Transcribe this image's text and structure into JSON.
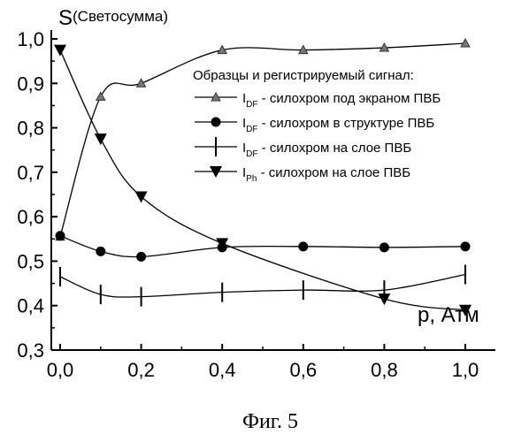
{
  "chart_data": {
    "type": "line",
    "ylabel_symbol": "S",
    "ylabel_text": "(Светосумма)",
    "xlabel": "p, Атм",
    "caption": "Фиг. 5",
    "xlim": [
      0,
      1.0
    ],
    "ylim": [
      0.3,
      1.0
    ],
    "x_ticks": [
      "0,0",
      "0,2",
      "0,4",
      "0,6",
      "0,8",
      "1,0"
    ],
    "x_tick_values": [
      0,
      0.2,
      0.4,
      0.6,
      0.8,
      1.0
    ],
    "y_ticks": [
      "0,3",
      "0,4",
      "0,5",
      "0,6",
      "0,7",
      "0,8",
      "0,9",
      "1,0"
    ],
    "y_tick_values": [
      0.3,
      0.4,
      0.5,
      0.6,
      0.7,
      0.8,
      0.9,
      1.0
    ],
    "legend_title": "Образцы и регистрируемый сигнал:",
    "series": [
      {
        "name_main": "I",
        "name_sub": "DF",
        "name_rest": " - силохром под экраном ПВБ",
        "marker": "triangle-up",
        "x": [
          0.0,
          0.1,
          0.2,
          0.4,
          0.6,
          0.8,
          1.0
        ],
        "y": [
          0.555,
          0.87,
          0.9,
          0.975,
          0.975,
          0.98,
          0.99
        ]
      },
      {
        "name_main": "I",
        "name_sub": "DF",
        "name_rest": " - силохром в структуре ПВБ",
        "marker": "circle",
        "x": [
          0.0,
          0.1,
          0.2,
          0.4,
          0.6,
          0.8,
          1.0
        ],
        "y": [
          0.557,
          0.522,
          0.51,
          0.531,
          0.533,
          0.531,
          0.533
        ]
      },
      {
        "name_main": "I",
        "name_sub": "DF",
        "name_rest": " - силохром на слое ПВБ",
        "marker": "vbar",
        "x": [
          0.0,
          0.1,
          0.2,
          0.4,
          0.6,
          0.8,
          1.0
        ],
        "y": [
          0.465,
          0.425,
          0.42,
          0.43,
          0.435,
          0.435,
          0.47
        ]
      },
      {
        "name_main": "I",
        "name_sub": "Ph",
        "name_rest": " - силохром на слое ПВБ",
        "marker": "triangle-down",
        "x": [
          0.0,
          0.1,
          0.2,
          0.4,
          0.6,
          0.8,
          1.0
        ],
        "y": [
          0.975,
          0.775,
          0.645,
          0.54,
          null,
          0.415,
          0.39
        ]
      }
    ]
  }
}
